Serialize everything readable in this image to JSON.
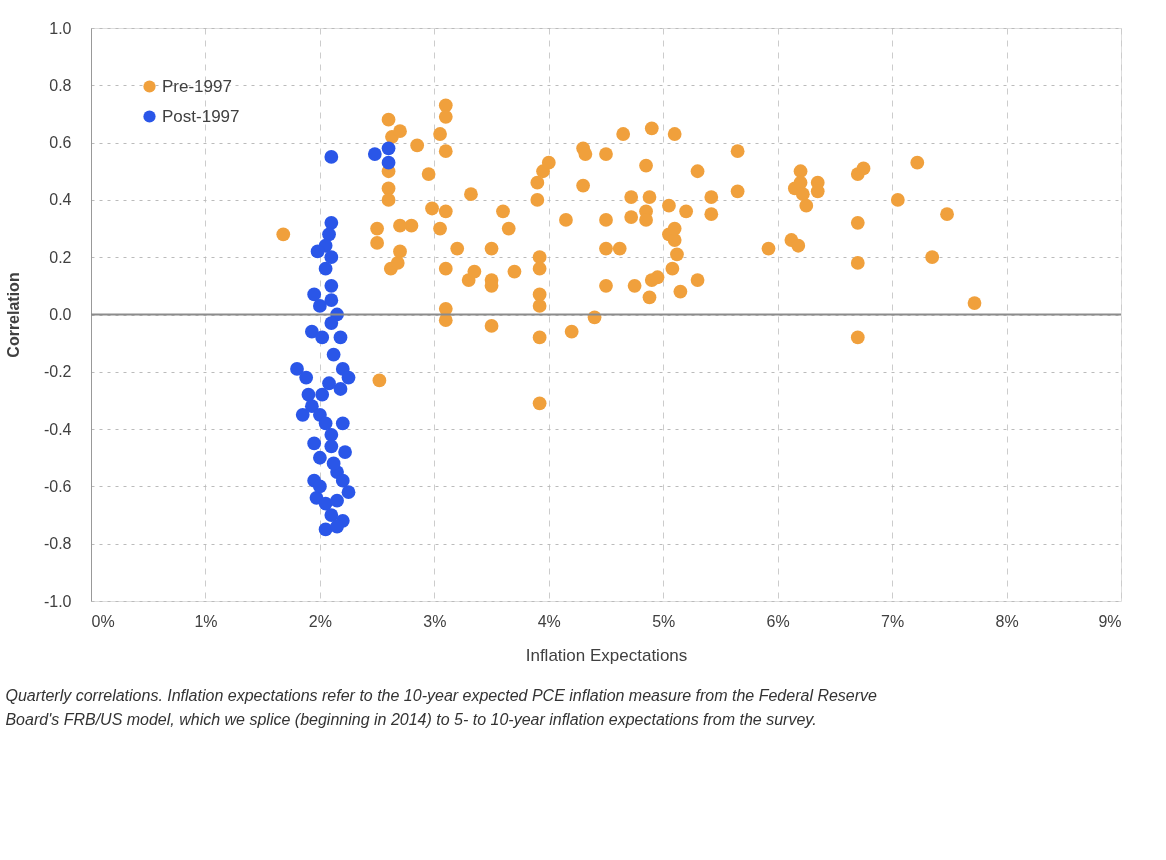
{
  "chart_data": {
    "type": "scatter",
    "xlabel": "Inflation Expectations",
    "ylabel": "Correlation",
    "xlim": [
      0,
      9
    ],
    "ylim": [
      -1.0,
      1.0
    ],
    "xticks": [
      {
        "value": 0,
        "label": "0%"
      },
      {
        "value": 1,
        "label": "1%"
      },
      {
        "value": 2,
        "label": "2%"
      },
      {
        "value": 3,
        "label": "3%"
      },
      {
        "value": 4,
        "label": "4%"
      },
      {
        "value": 5,
        "label": "5%"
      },
      {
        "value": 6,
        "label": "6%"
      },
      {
        "value": 7,
        "label": "7%"
      },
      {
        "value": 8,
        "label": "8%"
      },
      {
        "value": 9,
        "label": "9%"
      }
    ],
    "yticks": [
      {
        "value": 1.0,
        "label": "1.0"
      },
      {
        "value": 0.8,
        "label": "0.8"
      },
      {
        "value": 0.6,
        "label": "0.6"
      },
      {
        "value": 0.4,
        "label": "0.4"
      },
      {
        "value": 0.2,
        "label": "0.2"
      },
      {
        "value": 0.0,
        "label": "0.0"
      },
      {
        "value": -0.2,
        "label": "-0.2"
      },
      {
        "value": -0.4,
        "label": "-0.4"
      },
      {
        "value": -0.6,
        "label": "-0.6"
      },
      {
        "value": -0.8,
        "label": "-0.8"
      },
      {
        "value": -1.0,
        "label": "-1.0"
      }
    ],
    "grid": true,
    "legend": "top left",
    "marker": "circle",
    "ref_lines": [
      {
        "axis": "y",
        "value": 0,
        "color": "#8c8c8c"
      }
    ],
    "annotations": [
      "Quarterly correlations. Inflation expectations refer to the 10-year expected PCE inflation measure from the Federal Reserve Board's FRB/US model, which we splice (beginning in 2014) to 5- to 10-year inflation expectations from the survey."
    ],
    "series": [
      {
        "name": "Pre-1997",
        "color": "#f0a03c",
        "x": [
          1.68,
          2.5,
          2.5,
          2.52,
          2.6,
          2.63,
          2.6,
          2.6,
          2.6,
          2.7,
          2.85,
          2.95,
          2.8,
          2.7,
          2.7,
          2.62,
          2.68,
          2.98,
          3.1,
          3.1,
          3.05,
          3.1,
          3.1,
          3.05,
          3.1,
          3.1,
          3.1,
          3.2,
          3.32,
          3.3,
          3.35,
          3.5,
          3.5,
          3.5,
          3.5,
          3.6,
          3.65,
          3.7,
          3.9,
          3.9,
          3.95,
          4.0,
          3.92,
          3.92,
          3.92,
          3.92,
          3.92,
          3.92,
          4.15,
          4.2,
          4.3,
          4.32,
          4.3,
          4.4,
          4.5,
          4.5,
          4.5,
          4.5,
          4.62,
          4.65,
          4.72,
          4.72,
          4.75,
          4.85,
          4.85,
          4.85,
          4.88,
          4.9,
          4.9,
          4.88,
          4.95,
          5.05,
          5.1,
          5.05,
          5.1,
          5.12,
          5.08,
          5.1,
          5.15,
          5.2,
          5.3,
          5.3,
          5.42,
          5.42,
          5.65,
          5.65,
          5.92,
          6.12,
          6.18,
          6.15,
          6.2,
          6.2,
          6.22,
          6.25,
          6.35,
          6.35,
          6.7,
          6.75,
          6.7,
          6.7,
          6.7,
          7.05,
          7.22,
          7.35,
          7.48,
          7.72
        ],
        "values": [
          0.28,
          0.3,
          0.25,
          -0.23,
          0.68,
          0.62,
          0.5,
          0.44,
          0.4,
          0.64,
          0.59,
          0.49,
          0.31,
          0.31,
          0.22,
          0.16,
          0.18,
          0.37,
          0.73,
          0.69,
          0.63,
          0.57,
          0.36,
          0.3,
          0.16,
          0.02,
          -0.02,
          0.23,
          0.42,
          0.12,
          0.15,
          0.23,
          0.12,
          0.1,
          -0.04,
          0.36,
          0.3,
          0.15,
          0.46,
          0.4,
          0.5,
          0.53,
          0.2,
          0.16,
          0.07,
          0.03,
          -0.08,
          -0.31,
          0.33,
          -0.06,
          0.58,
          0.56,
          0.45,
          -0.01,
          0.56,
          0.33,
          0.23,
          0.1,
          0.23,
          0.63,
          0.41,
          0.34,
          0.1,
          0.52,
          0.36,
          0.33,
          0.41,
          0.65,
          0.12,
          0.06,
          0.13,
          0.38,
          0.63,
          0.28,
          0.26,
          0.21,
          0.16,
          0.3,
          0.08,
          0.36,
          0.5,
          0.12,
          0.41,
          0.35,
          0.57,
          0.43,
          0.23,
          0.26,
          0.24,
          0.44,
          0.5,
          0.46,
          0.42,
          0.38,
          0.46,
          0.43,
          0.49,
          0.51,
          0.32,
          0.18,
          -0.08,
          0.4,
          0.53,
          0.2,
          0.35,
          0.04
        ]
      },
      {
        "name": "Post-1997",
        "color": "#2a56e8",
        "x": [
          2.1,
          2.48,
          2.6,
          2.6,
          2.1,
          2.08,
          2.05,
          1.98,
          2.1,
          2.05,
          2.1,
          1.95,
          2.0,
          2.1,
          2.15,
          1.93,
          2.02,
          2.18,
          2.1,
          1.8,
          1.88,
          2.2,
          2.25,
          2.18,
          1.9,
          1.93,
          2.0,
          1.85,
          2.05,
          2.1,
          2.2,
          1.95,
          2.0,
          2.1,
          2.15,
          2.2,
          2.25,
          1.95,
          1.97,
          2.05,
          2.15,
          2.1,
          2.2,
          2.05,
          2.15,
          2.0,
          2.12,
          2.22,
          2.02,
          2.12,
          2.08
        ],
        "values": [
          0.55,
          0.56,
          0.58,
          0.53,
          0.32,
          0.28,
          0.24,
          0.22,
          0.2,
          0.16,
          0.1,
          0.07,
          0.03,
          0.05,
          0.0,
          -0.06,
          -0.08,
          -0.08,
          -0.03,
          -0.19,
          -0.22,
          -0.19,
          -0.22,
          -0.26,
          -0.28,
          -0.32,
          -0.35,
          -0.35,
          -0.38,
          -0.42,
          -0.38,
          -0.45,
          -0.5,
          -0.46,
          -0.55,
          -0.58,
          -0.62,
          -0.58,
          -0.64,
          -0.66,
          -0.65,
          -0.7,
          -0.72,
          -0.75,
          -0.74,
          -0.6,
          -0.52,
          -0.48,
          -0.28,
          -0.14,
          -0.24
        ]
      }
    ]
  }
}
